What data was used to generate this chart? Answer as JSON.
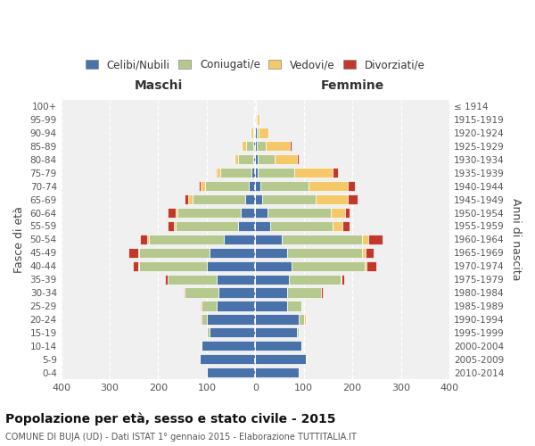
{
  "age_groups_bottom_to_top": [
    "0-4",
    "5-9",
    "10-14",
    "15-19",
    "20-24",
    "25-29",
    "30-34",
    "35-39",
    "40-44",
    "45-49",
    "50-54",
    "55-59",
    "60-64",
    "65-69",
    "70-74",
    "75-79",
    "80-84",
    "85-89",
    "90-94",
    "95-99",
    "100+"
  ],
  "birth_years_bottom_to_top": [
    "2010-2014",
    "2005-2009",
    "2000-2004",
    "1995-1999",
    "1990-1994",
    "1985-1989",
    "1980-1984",
    "1975-1979",
    "1970-1974",
    "1965-1969",
    "1960-1964",
    "1955-1959",
    "1950-1954",
    "1945-1949",
    "1940-1944",
    "1935-1939",
    "1930-1934",
    "1925-1929",
    "1920-1924",
    "1915-1919",
    "≤ 1914"
  ],
  "male": {
    "celibi": [
      100,
      115,
      110,
      95,
      100,
      80,
      75,
      80,
      100,
      95,
      65,
      35,
      30,
      20,
      14,
      8,
      5,
      4,
      2,
      2,
      1
    ],
    "coniugati": [
      0,
      0,
      0,
      5,
      10,
      30,
      70,
      100,
      140,
      145,
      155,
      130,
      130,
      110,
      90,
      65,
      30,
      15,
      3,
      1,
      0
    ],
    "vedovi": [
      0,
      0,
      0,
      0,
      0,
      0,
      0,
      1,
      2,
      2,
      3,
      3,
      5,
      8,
      8,
      6,
      8,
      10,
      5,
      2,
      0
    ],
    "divorziati": [
      0,
      0,
      0,
      0,
      2,
      3,
      3,
      5,
      10,
      20,
      15,
      12,
      15,
      8,
      5,
      2,
      0,
      0,
      0,
      0,
      0
    ]
  },
  "female": {
    "nubili": [
      90,
      105,
      95,
      85,
      90,
      65,
      65,
      70,
      75,
      65,
      55,
      30,
      25,
      15,
      10,
      5,
      5,
      4,
      3,
      2,
      1
    ],
    "coniugate": [
      0,
      0,
      0,
      5,
      10,
      30,
      70,
      105,
      150,
      155,
      165,
      130,
      130,
      110,
      100,
      75,
      35,
      18,
      4,
      1,
      0
    ],
    "vedove": [
      0,
      0,
      0,
      0,
      5,
      0,
      1,
      3,
      5,
      8,
      12,
      20,
      30,
      65,
      80,
      80,
      45,
      50,
      20,
      5,
      1
    ],
    "divorziate": [
      0,
      0,
      0,
      0,
      0,
      0,
      3,
      5,
      20,
      15,
      30,
      15,
      10,
      20,
      15,
      10,
      5,
      2,
      0,
      0,
      0
    ]
  },
  "colors": {
    "celibi": "#4a72aa",
    "coniugati": "#b5c98e",
    "vedovi": "#f5c96a",
    "divorziati": "#c0392b"
  },
  "xlim": 400,
  "title": "Popolazione per età, sesso e stato civile - 2015",
  "subtitle": "COMUNE DI BUJA (UD) - Dati ISTAT 1° gennaio 2015 - Elaborazione TUTTITALIA.IT",
  "ylabel_left": "Fasce di età",
  "ylabel_right": "Anni di nascita",
  "xlabel_left": "Maschi",
  "xlabel_right": "Femmine",
  "bg_color": "#f0f0f0",
  "legend_labels": [
    "Celibi/Nubili",
    "Coniugati/e",
    "Vedovi/e",
    "Divorziati/e"
  ]
}
